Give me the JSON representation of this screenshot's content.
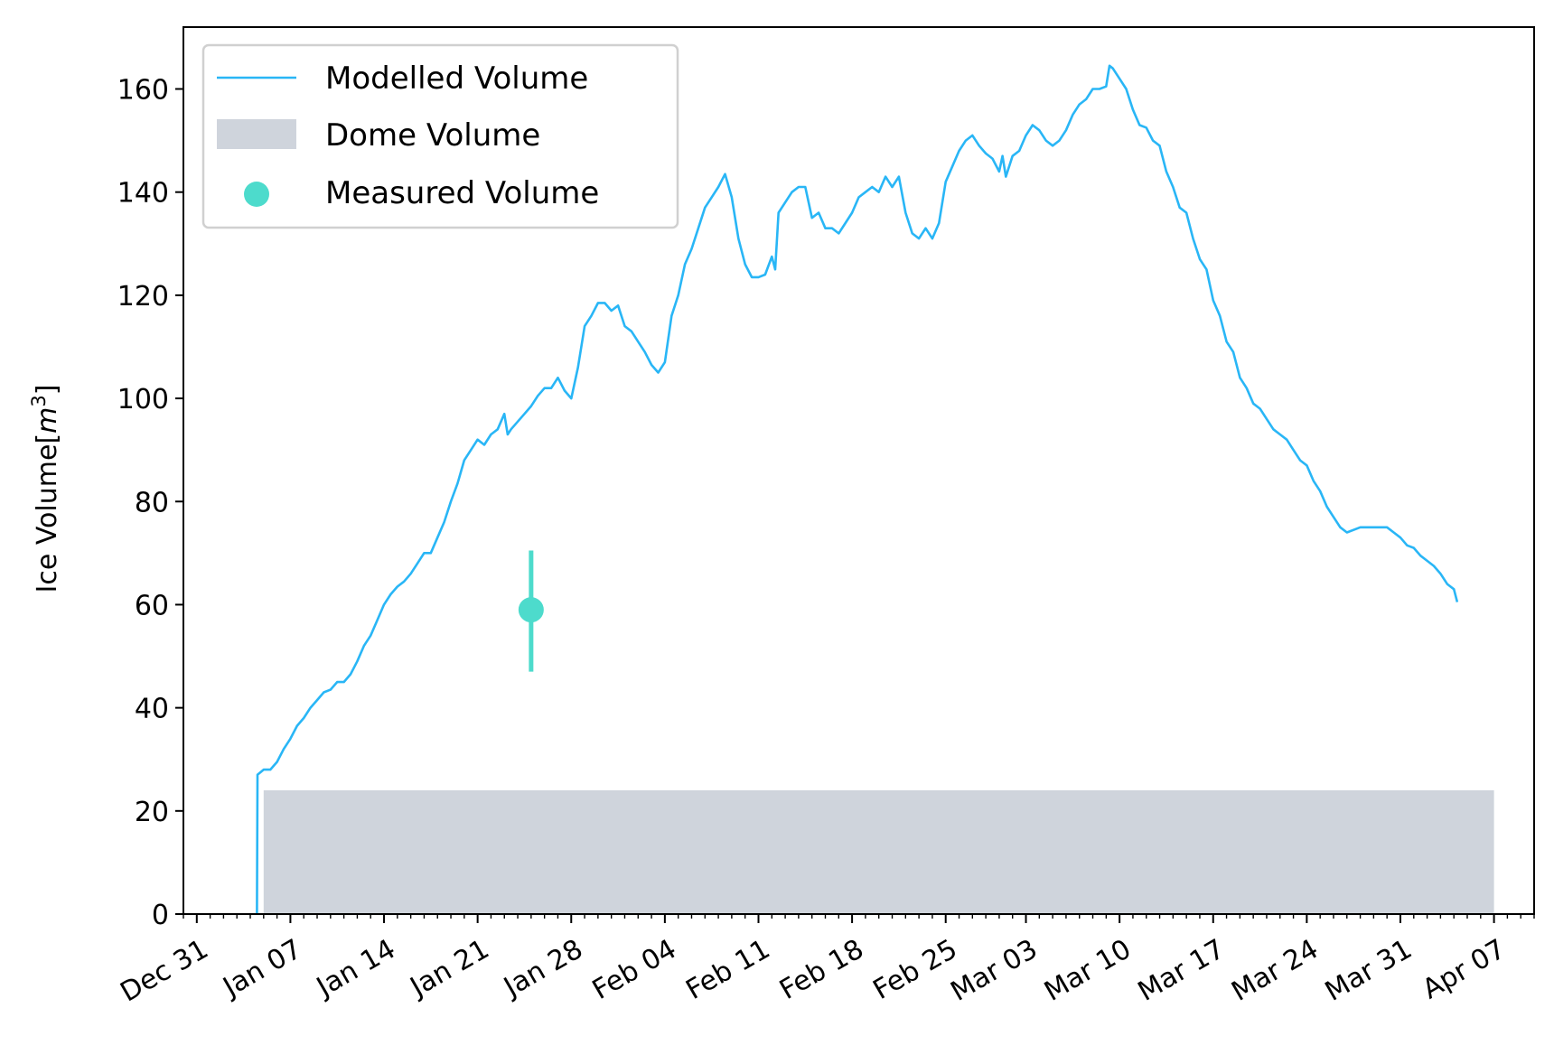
{
  "chart_data": {
    "type": "line",
    "ylabel_main": "Ice Volume[",
    "ylabel_unit_base": "m",
    "ylabel_unit_exp": "3",
    "ylabel_close": "]",
    "xlabel": "",
    "ylim": [
      0,
      172
    ],
    "xlim": [
      "2022-12-30",
      "2023-04-10"
    ],
    "grid": false,
    "legend_position": "top-left",
    "y_ticks": [
      0,
      20,
      40,
      60,
      80,
      100,
      120,
      140,
      160
    ],
    "x_ticks": [
      {
        "date": "2022-12-31",
        "label": "Dec 31"
      },
      {
        "date": "2023-01-07",
        "label": "Jan 07"
      },
      {
        "date": "2023-01-14",
        "label": "Jan 14"
      },
      {
        "date": "2023-01-21",
        "label": "Jan 21"
      },
      {
        "date": "2023-01-28",
        "label": "Jan 28"
      },
      {
        "date": "2023-02-04",
        "label": "Feb 04"
      },
      {
        "date": "2023-02-11",
        "label": "Feb 11"
      },
      {
        "date": "2023-02-18",
        "label": "Feb 18"
      },
      {
        "date": "2023-02-25",
        "label": "Feb 25"
      },
      {
        "date": "2023-03-03",
        "label": "Mar 03"
      },
      {
        "date": "2023-03-10",
        "label": "Mar 10"
      },
      {
        "date": "2023-03-17",
        "label": "Mar 17"
      },
      {
        "date": "2023-03-24",
        "label": "Mar 24"
      },
      {
        "date": "2023-03-31",
        "label": "Mar 31"
      },
      {
        "date": "2023-04-07",
        "label": "Apr 07"
      }
    ],
    "legend": [
      {
        "name": "Modelled Volume",
        "symbol": "line"
      },
      {
        "name": "Dome Volume",
        "symbol": "patch"
      },
      {
        "name": "Measured Volume",
        "symbol": "marker"
      }
    ],
    "colors": {
      "modelled": "#29b6f6",
      "dome": "#cfd4dc",
      "measured": "#4ddbcc"
    },
    "series": [
      {
        "name": "Modelled Volume",
        "points": [
          [
            "2023-01-04T12:00",
            0
          ],
          [
            "2023-01-04T13:00",
            27
          ],
          [
            "2023-01-05",
            28
          ],
          [
            "2023-01-05T12:00",
            28
          ],
          [
            "2023-01-06",
            29.5
          ],
          [
            "2023-01-06T12:00",
            32
          ],
          [
            "2023-01-07",
            34
          ],
          [
            "2023-01-07T12:00",
            36.5
          ],
          [
            "2023-01-08",
            38
          ],
          [
            "2023-01-08T12:00",
            40
          ],
          [
            "2023-01-09",
            41.5
          ],
          [
            "2023-01-09T12:00",
            43
          ],
          [
            "2023-01-10",
            43.5
          ],
          [
            "2023-01-10T12:00",
            45
          ],
          [
            "2023-01-11",
            45
          ],
          [
            "2023-01-11T12:00",
            46.5
          ],
          [
            "2023-01-12",
            49
          ],
          [
            "2023-01-12T12:00",
            52
          ],
          [
            "2023-01-13",
            54
          ],
          [
            "2023-01-13T12:00",
            57
          ],
          [
            "2023-01-14",
            60
          ],
          [
            "2023-01-14T12:00",
            62
          ],
          [
            "2023-01-15",
            63.5
          ],
          [
            "2023-01-15T12:00",
            64.5
          ],
          [
            "2023-01-16",
            66
          ],
          [
            "2023-01-16T12:00",
            68
          ],
          [
            "2023-01-17",
            70
          ],
          [
            "2023-01-17T12:00",
            70
          ],
          [
            "2023-01-18",
            73
          ],
          [
            "2023-01-18T12:00",
            76
          ],
          [
            "2023-01-19",
            80
          ],
          [
            "2023-01-19T12:00",
            83.5
          ],
          [
            "2023-01-20",
            88
          ],
          [
            "2023-01-20T12:00",
            90
          ],
          [
            "2023-01-21",
            92
          ],
          [
            "2023-01-21T12:00",
            91
          ],
          [
            "2023-01-22",
            93
          ],
          [
            "2023-01-22T12:00",
            94
          ],
          [
            "2023-01-23",
            97
          ],
          [
            "2023-01-23T06:00",
            93
          ],
          [
            "2023-01-23T12:00",
            94
          ],
          [
            "2023-01-24",
            95.5
          ],
          [
            "2023-01-24T12:00",
            97
          ],
          [
            "2023-01-25",
            98.5
          ],
          [
            "2023-01-25T12:00",
            100.5
          ],
          [
            "2023-01-26",
            102
          ],
          [
            "2023-01-26T12:00",
            102
          ],
          [
            "2023-01-27",
            104
          ],
          [
            "2023-01-27T12:00",
            101.5
          ],
          [
            "2023-01-28",
            100
          ],
          [
            "2023-01-28T12:00",
            106
          ],
          [
            "2023-01-29",
            114
          ],
          [
            "2023-01-29T12:00",
            116
          ],
          [
            "2023-01-30",
            118.5
          ],
          [
            "2023-01-30T12:00",
            118.5
          ],
          [
            "2023-01-31",
            117
          ],
          [
            "2023-01-31T12:00",
            118
          ],
          [
            "2023-02-01",
            114
          ],
          [
            "2023-02-01T12:00",
            113
          ],
          [
            "2023-02-02",
            111
          ],
          [
            "2023-02-02T12:00",
            109
          ],
          [
            "2023-02-03",
            106.5
          ],
          [
            "2023-02-03T12:00",
            105
          ],
          [
            "2023-02-04",
            107
          ],
          [
            "2023-02-04T12:00",
            116
          ],
          [
            "2023-02-05",
            120
          ],
          [
            "2023-02-05T12:00",
            126
          ],
          [
            "2023-02-06",
            129
          ],
          [
            "2023-02-06T12:00",
            133
          ],
          [
            "2023-02-07",
            137
          ],
          [
            "2023-02-07T12:00",
            139
          ],
          [
            "2023-02-08",
            141
          ],
          [
            "2023-02-08T12:00",
            143.5
          ],
          [
            "2023-02-09",
            139
          ],
          [
            "2023-02-09T12:00",
            131
          ],
          [
            "2023-02-10",
            126
          ],
          [
            "2023-02-10T12:00",
            123.5
          ],
          [
            "2023-02-11",
            123.5
          ],
          [
            "2023-02-11T12:00",
            124
          ],
          [
            "2023-02-12",
            127.5
          ],
          [
            "2023-02-12T06:00",
            125
          ],
          [
            "2023-02-12T12:00",
            136
          ],
          [
            "2023-02-13",
            138
          ],
          [
            "2023-02-13T12:00",
            140
          ],
          [
            "2023-02-14",
            141
          ],
          [
            "2023-02-14T12:00",
            141
          ],
          [
            "2023-02-15",
            135
          ],
          [
            "2023-02-15T12:00",
            136
          ],
          [
            "2023-02-16",
            133
          ],
          [
            "2023-02-16T12:00",
            133
          ],
          [
            "2023-02-17",
            132
          ],
          [
            "2023-02-17T12:00",
            134
          ],
          [
            "2023-02-18",
            136
          ],
          [
            "2023-02-18T12:00",
            139
          ],
          [
            "2023-02-19",
            140
          ],
          [
            "2023-02-19T12:00",
            141
          ],
          [
            "2023-02-20",
            140
          ],
          [
            "2023-02-20T12:00",
            143
          ],
          [
            "2023-02-21",
            141
          ],
          [
            "2023-02-21T12:00",
            143
          ],
          [
            "2023-02-22",
            136
          ],
          [
            "2023-02-22T12:00",
            132
          ],
          [
            "2023-02-23",
            131
          ],
          [
            "2023-02-23T12:00",
            133
          ],
          [
            "2023-02-24",
            131
          ],
          [
            "2023-02-24T12:00",
            134
          ],
          [
            "2023-02-25",
            142
          ],
          [
            "2023-02-25T12:00",
            145
          ],
          [
            "2023-02-26",
            148
          ],
          [
            "2023-02-26T12:00",
            150
          ],
          [
            "2023-02-27",
            151
          ],
          [
            "2023-02-27T12:00",
            149
          ],
          [
            "2023-02-28",
            147.5
          ],
          [
            "2023-02-28T12:00",
            146.5
          ],
          [
            "2023-03-01",
            144
          ],
          [
            "2023-03-01T06:00",
            147
          ],
          [
            "2023-03-01T12:00",
            143
          ],
          [
            "2023-03-02",
            147
          ],
          [
            "2023-03-02T12:00",
            148
          ],
          [
            "2023-03-03",
            151
          ],
          [
            "2023-03-03T12:00",
            153
          ],
          [
            "2023-03-04",
            152
          ],
          [
            "2023-03-04T12:00",
            150
          ],
          [
            "2023-03-05",
            149
          ],
          [
            "2023-03-05T12:00",
            150
          ],
          [
            "2023-03-06",
            152
          ],
          [
            "2023-03-06T12:00",
            155
          ],
          [
            "2023-03-07",
            157
          ],
          [
            "2023-03-07T12:00",
            158
          ],
          [
            "2023-03-08",
            160
          ],
          [
            "2023-03-08T12:00",
            160
          ],
          [
            "2023-03-09",
            160.5
          ],
          [
            "2023-03-09T06:00",
            164.5
          ],
          [
            "2023-03-09T12:00",
            164
          ],
          [
            "2023-03-10",
            162
          ],
          [
            "2023-03-10T12:00",
            160
          ],
          [
            "2023-03-11",
            156
          ],
          [
            "2023-03-11T12:00",
            153
          ],
          [
            "2023-03-12",
            152.5
          ],
          [
            "2023-03-12T12:00",
            150
          ],
          [
            "2023-03-13",
            149
          ],
          [
            "2023-03-13T12:00",
            144
          ],
          [
            "2023-03-14",
            141
          ],
          [
            "2023-03-14T12:00",
            137
          ],
          [
            "2023-03-15",
            136
          ],
          [
            "2023-03-15T12:00",
            131
          ],
          [
            "2023-03-16",
            127
          ],
          [
            "2023-03-16T12:00",
            125
          ],
          [
            "2023-03-17",
            119
          ],
          [
            "2023-03-17T12:00",
            116
          ],
          [
            "2023-03-18",
            111
          ],
          [
            "2023-03-18T12:00",
            109
          ],
          [
            "2023-03-19",
            104
          ],
          [
            "2023-03-19T12:00",
            102
          ],
          [
            "2023-03-20",
            99
          ],
          [
            "2023-03-20T12:00",
            98
          ],
          [
            "2023-03-21",
            96
          ],
          [
            "2023-03-21T12:00",
            94
          ],
          [
            "2023-03-22",
            93
          ],
          [
            "2023-03-22T12:00",
            92
          ],
          [
            "2023-03-23",
            90
          ],
          [
            "2023-03-23T12:00",
            88
          ],
          [
            "2023-03-24",
            87
          ],
          [
            "2023-03-24T12:00",
            84
          ],
          [
            "2023-03-25",
            82
          ],
          [
            "2023-03-25T12:00",
            79
          ],
          [
            "2023-03-26",
            77
          ],
          [
            "2023-03-26T12:00",
            75
          ],
          [
            "2023-03-27",
            74
          ],
          [
            "2023-03-28",
            75
          ],
          [
            "2023-03-29",
            75
          ],
          [
            "2023-03-30",
            75
          ],
          [
            "2023-03-30T12:00",
            74
          ],
          [
            "2023-03-31",
            73
          ],
          [
            "2023-03-31T12:00",
            71.5
          ],
          [
            "2023-04-01",
            71
          ],
          [
            "2023-04-01T12:00",
            69.5
          ],
          [
            "2023-04-02",
            68.5
          ],
          [
            "2023-04-02T12:00",
            67.5
          ],
          [
            "2023-04-03",
            66
          ],
          [
            "2023-04-03T12:00",
            64
          ],
          [
            "2023-04-04",
            63
          ],
          [
            "2023-04-04T06:00",
            60.5
          ]
        ]
      },
      {
        "name": "Dome Volume",
        "x_start": "2023-01-05",
        "x_end": "2023-04-07",
        "value": 24
      },
      {
        "name": "Measured Volume",
        "x": "2023-01-25",
        "value": 59,
        "error_low": 47,
        "error_high": 70.5
      }
    ]
  }
}
